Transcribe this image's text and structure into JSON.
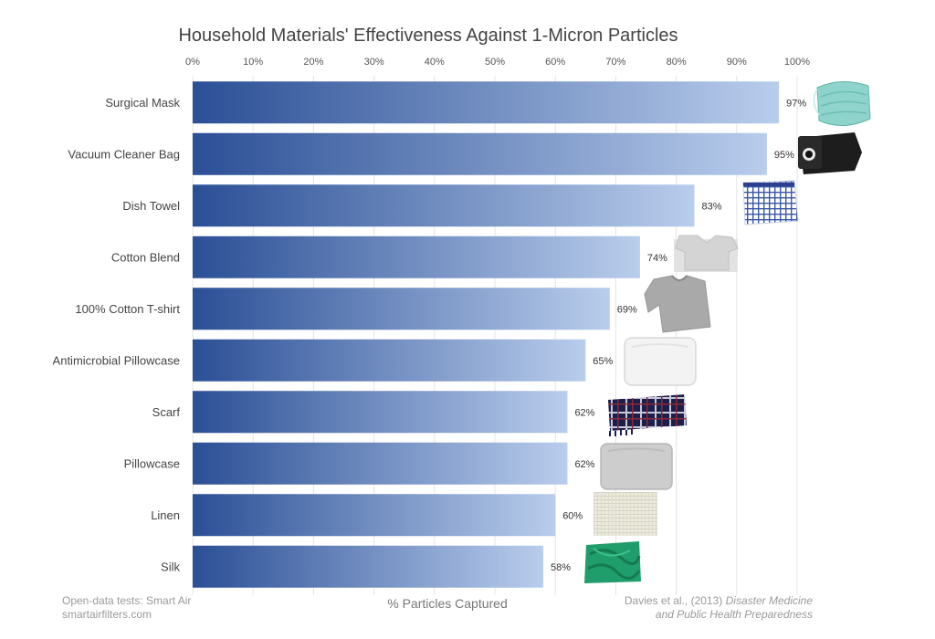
{
  "chart_data": {
    "type": "bar",
    "orientation": "horizontal",
    "title": "Household Materials' Effectiveness Against 1-Micron Particles",
    "xlabel": "% Particles Captured",
    "ylabel": "",
    "xlim": [
      0,
      100
    ],
    "x_ticks": [
      "0%",
      "10%",
      "20%",
      "30%",
      "40%",
      "50%",
      "60%",
      "70%",
      "80%",
      "90%",
      "100%"
    ],
    "x_axis_position": "top",
    "grid": true,
    "categories": [
      "Surgical Mask",
      "Vacuum Cleaner Bag",
      "Dish Towel",
      "Cotton Blend",
      "100% Cotton T-shirt",
      "Antimicrobial Pillowcase",
      "Scarf",
      "Pillowcase",
      "Linen",
      "Silk"
    ],
    "values": [
      97,
      95,
      83,
      74,
      69,
      65,
      62,
      62,
      60,
      58
    ],
    "value_labels": [
      "97%",
      "95%",
      "83%",
      "74%",
      "69%",
      "65%",
      "62%",
      "62%",
      "60%",
      "58%"
    ],
    "colors": {
      "bar_start": "#2b4f96",
      "bar_end": "#b9cdec",
      "grid": "#e4e4e4"
    },
    "material_images": [
      "surgical-mask-image",
      "vacuum-bag-image",
      "dish-towel-image",
      "cotton-blend-image",
      "tshirt-image",
      "antimicrobial-pillow-image",
      "scarf-image",
      "pillowcase-image",
      "linen-image",
      "silk-image"
    ]
  },
  "footer": {
    "source_line1": "Open-data tests: Smart Air",
    "source_line2": "smartairfilters.com",
    "citation_prefix": "Davies et al., (2013)",
    "citation_journal_line1": "Disaster Medicine",
    "citation_journal_line2": "and Public Health Preparedness"
  }
}
